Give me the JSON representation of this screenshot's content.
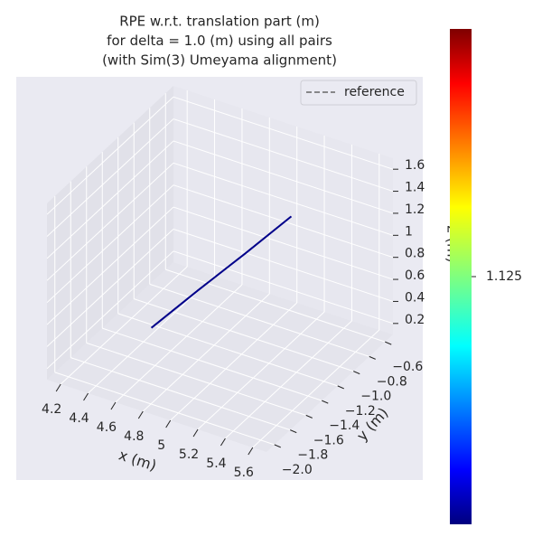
{
  "chart_data": {
    "type": "line3d",
    "title": [
      "RPE w.r.t. translation part (m)",
      "for delta = 1.0 (m) using all pairs",
      "(with Sim(3) Umeyama alignment)"
    ],
    "xlabel": "x (m)",
    "ylabel": "y (m)",
    "zlabel": "z (m)",
    "xlim": [
      4.1,
      5.7
    ],
    "ylim": [
      -2.1,
      -0.5
    ],
    "zlim": [
      0.1,
      1.7
    ],
    "xticks": [
      4.2,
      4.4,
      4.6,
      4.8,
      5.0,
      5.2,
      5.4,
      5.6
    ],
    "yticks": [
      {
        "value": -2.0,
        "label": "−2.0"
      },
      {
        "value": -1.8,
        "label": "−1.8"
      },
      {
        "value": -1.6,
        "label": "−1.6"
      },
      {
        "value": -1.4,
        "label": "−1.4"
      },
      {
        "value": -1.2,
        "label": "−1.2"
      },
      {
        "value": -1.0,
        "label": "−1.0"
      },
      {
        "value": -0.8,
        "label": "−0.8"
      },
      {
        "value": -0.6,
        "label": "−0.6"
      }
    ],
    "zticks": [
      0.2,
      0.4,
      0.6,
      0.8,
      1.0,
      1.2,
      1.4,
      1.6
    ],
    "series": [
      {
        "name": "reference",
        "color": "#666666",
        "dashed": true,
        "x": [
          4.4,
          4.74,
          5.08,
          5.42
        ],
        "y": [
          -1.28,
          -1.28,
          -1.28,
          -1.28
        ],
        "z": [
          0.16,
          0.64,
          1.11,
          1.59
        ]
      },
      {
        "color": "#00008b",
        "dashed": false,
        "x": [
          4.4,
          4.74,
          5.08,
          5.42
        ],
        "y": [
          -1.3,
          -1.3,
          -1.3,
          -1.3
        ],
        "z": [
          0.16,
          0.64,
          1.11,
          1.59
        ]
      }
    ],
    "colorbar": {
      "colormap": "jet",
      "lim": [
        1.1,
        1.15
      ],
      "ticks": [
        1.125
      ]
    },
    "legend": "upper right",
    "grid": true
  }
}
